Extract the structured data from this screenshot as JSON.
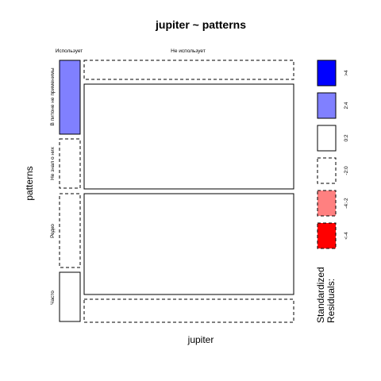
{
  "chart_data": {
    "type": "mosaic",
    "title": "jupiter ~ patterns",
    "xlabel": "jupiter",
    "ylabel": "patterns",
    "x_categories": [
      "Использует",
      "Не использует"
    ],
    "y_categories": [
      "В питоне не применимы",
      "Не знал о них",
      "Редко",
      "Часто"
    ],
    "legend": {
      "title_line1": "Standardized",
      "title_line2": "Residuals:",
      "items": [
        {
          "label": ">4",
          "fill": "#0000ff",
          "dashed": false
        },
        {
          "label": "2:4",
          "fill": "#8080ff",
          "dashed": false
        },
        {
          "label": "0:2",
          "fill": "#ffffff",
          "dashed": false
        },
        {
          "label": "-2:0",
          "fill": "#ffffff",
          "dashed": true
        },
        {
          "label": "-4:-2",
          "fill": "#ff8080",
          "dashed": true
        },
        {
          "label": "<-4",
          "fill": "#ff0000",
          "dashed": true
        }
      ]
    },
    "cells": [
      {
        "row": "В питоне не применимы",
        "col": "Использует",
        "fill": "#8080ff",
        "dashed": false
      },
      {
        "row": "В питоне не применимы",
        "col": "Не использует",
        "fill": "#ffffff",
        "dashed": true
      },
      {
        "row": "Не знал о них",
        "col": "Использует",
        "fill": "#ffffff",
        "dashed": true
      },
      {
        "row": "Не знал о них",
        "col": "Не использует",
        "fill": "#ffffff",
        "dashed": false
      },
      {
        "row": "Редко",
        "col": "Использует",
        "fill": "#ffffff",
        "dashed": true
      },
      {
        "row": "Редко",
        "col": "Не использует",
        "fill": "#ffffff",
        "dashed": false
      },
      {
        "row": "Часто",
        "col": "Использует",
        "fill": "#ffffff",
        "dashed": false
      },
      {
        "row": "Часто",
        "col": "Не использует",
        "fill": "#ffffff",
        "dashed": true
      }
    ]
  }
}
